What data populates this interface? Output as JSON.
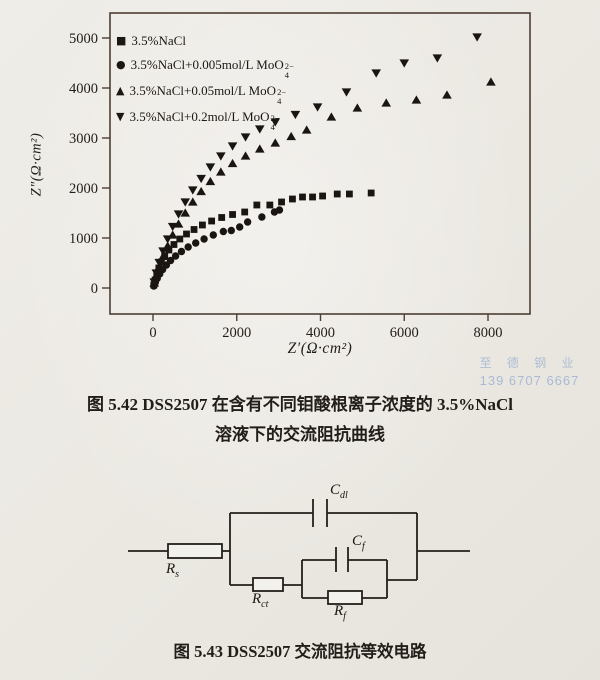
{
  "figure1": {
    "caption_line1": "图 5.42  DSS2507 在含有不同钼酸根离子浓度的 3.5%NaCl",
    "caption_line2": "溶液下的交流阻抗曲线"
  },
  "figure2": {
    "caption": "图 5.43  DSS2507 交流阻抗等效电路"
  },
  "watermark": {
    "line1": "至 德 钢 业",
    "line2": "139 6707 6667",
    "color": "#a3b6d2"
  },
  "colors": {
    "ink": "#221d19",
    "marker": "#1b1512",
    "frame": "#4d3e35",
    "paper": "#edeae4"
  },
  "chart_data": {
    "type": "scatter",
    "title": "",
    "xlabel": "Z′(Ω·cm²)",
    "ylabel": "Z″(Ω·cm²)",
    "xlim": [
      -1000,
      9000
    ],
    "ylim": [
      -520,
      5500
    ],
    "xticks": [
      0,
      2000,
      4000,
      6000,
      8000
    ],
    "yticks": [
      0,
      1000,
      2000,
      3000,
      4000,
      5000
    ],
    "grid": false,
    "legend_position": "top-left",
    "series": [
      {
        "name": "3.5%NaCl",
        "marker": "square",
        "legend": {
          "text": "3.5%NaCl",
          "sup": "",
          "sub": ""
        },
        "points": [
          [
            20,
            60
          ],
          [
            50,
            160
          ],
          [
            90,
            280
          ],
          [
            140,
            400
          ],
          [
            200,
            520
          ],
          [
            280,
            640
          ],
          [
            380,
            760
          ],
          [
            500,
            870
          ],
          [
            640,
            980
          ],
          [
            800,
            1080
          ],
          [
            980,
            1170
          ],
          [
            1180,
            1260
          ],
          [
            1400,
            1340
          ],
          [
            1640,
            1410
          ],
          [
            1900,
            1470
          ],
          [
            2190,
            1520
          ],
          [
            2480,
            1660
          ],
          [
            2790,
            1660
          ],
          [
            3070,
            1720
          ],
          [
            3330,
            1780
          ],
          [
            3570,
            1820
          ],
          [
            3810,
            1820
          ],
          [
            4050,
            1840
          ],
          [
            4400,
            1880
          ],
          [
            4690,
            1880
          ],
          [
            5210,
            1900
          ]
        ]
      },
      {
        "name": "3.5%NaCl+0.005mol/L MoO₄²⁻",
        "marker": "circle",
        "legend": {
          "text": "3.5%NaCl+0.005mol/L MoO",
          "sup": "2−",
          "sub": "4"
        },
        "points": [
          [
            20,
            40
          ],
          [
            55,
            110
          ],
          [
            100,
            190
          ],
          [
            160,
            280
          ],
          [
            230,
            370
          ],
          [
            320,
            460
          ],
          [
            420,
            550
          ],
          [
            540,
            640
          ],
          [
            680,
            730
          ],
          [
            840,
            820
          ],
          [
            1020,
            900
          ],
          [
            1220,
            980
          ],
          [
            1440,
            1060
          ],
          [
            1680,
            1130
          ],
          [
            1870,
            1150
          ],
          [
            2070,
            1220
          ],
          [
            2260,
            1320
          ],
          [
            2600,
            1420
          ],
          [
            2900,
            1520
          ],
          [
            3020,
            1560
          ]
        ]
      },
      {
        "name": "3.5%NaCl+0.05mol/L MoO₄²⁻",
        "marker": "triangle-up",
        "legend": {
          "text": "3.5%NaCl+0.05mol/L MoO",
          "sup": "2−",
          "sub": "4"
        },
        "points": [
          [
            30,
            100
          ],
          [
            80,
            250
          ],
          [
            150,
            430
          ],
          [
            240,
            630
          ],
          [
            350,
            840
          ],
          [
            470,
            1060
          ],
          [
            610,
            1280
          ],
          [
            770,
            1500
          ],
          [
            950,
            1720
          ],
          [
            1150,
            1930
          ],
          [
            1370,
            2130
          ],
          [
            1620,
            2320
          ],
          [
            1900,
            2490
          ],
          [
            2210,
            2640
          ],
          [
            2550,
            2780
          ],
          [
            2920,
            2900
          ],
          [
            3300,
            3030
          ],
          [
            3670,
            3160
          ],
          [
            4260,
            3420
          ],
          [
            4880,
            3600
          ],
          [
            5570,
            3700
          ],
          [
            6290,
            3760
          ],
          [
            7020,
            3860
          ],
          [
            8070,
            4120
          ]
        ]
      },
      {
        "name": "3.5%NaCl+0.2mol/L MoO₄²⁻",
        "marker": "triangle-down",
        "legend": {
          "text": "3.5%NaCl+0.2mol/L MoO",
          "sup": "2−",
          "sub": "4"
        },
        "points": [
          [
            30,
            120
          ],
          [
            80,
            300
          ],
          [
            150,
            510
          ],
          [
            240,
            740
          ],
          [
            350,
            980
          ],
          [
            470,
            1230
          ],
          [
            610,
            1480
          ],
          [
            770,
            1720
          ],
          [
            950,
            1960
          ],
          [
            1150,
            2190
          ],
          [
            1370,
            2420
          ],
          [
            1620,
            2640
          ],
          [
            1900,
            2840
          ],
          [
            2210,
            3020
          ],
          [
            2550,
            3180
          ],
          [
            2920,
            3320
          ],
          [
            3400,
            3470
          ],
          [
            3930,
            3620
          ],
          [
            4620,
            3920
          ],
          [
            5330,
            4300
          ],
          [
            6000,
            4500
          ],
          [
            6790,
            4600
          ],
          [
            7740,
            5020
          ]
        ]
      }
    ]
  },
  "circuit": {
    "labels": {
      "rs": {
        "base": "R",
        "sub": "s"
      },
      "cdl": {
        "base": "C",
        "sub": "dl"
      },
      "rct": {
        "base": "R",
        "sub": "ct"
      },
      "cf": {
        "base": "C",
        "sub": "f"
      },
      "rf": {
        "base": "R",
        "sub": "f"
      }
    }
  }
}
